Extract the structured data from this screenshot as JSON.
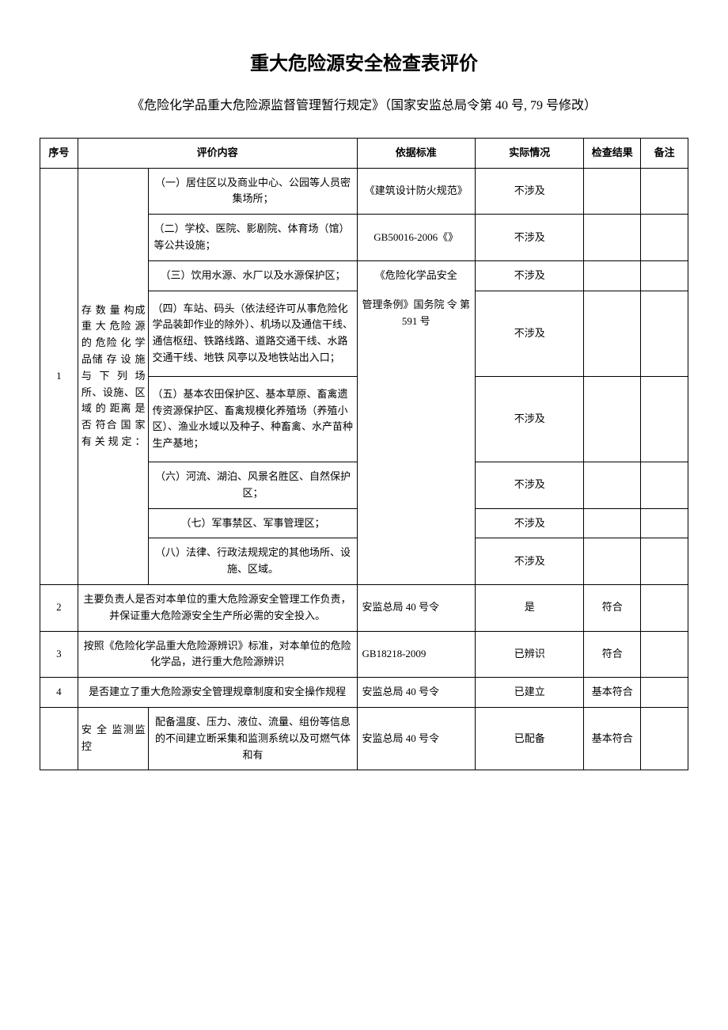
{
  "title": "重大危险源安全检查表评价",
  "subtitle": "《危险化学品重大危险源监督管理暂行规定》（国家安监总局令第 40 号, 79 号修改）",
  "headers": {
    "seq": "序号",
    "content": "评价内容",
    "standard": "依据标准",
    "actual": "实际情况",
    "result": "检查结果",
    "remark": "备注"
  },
  "row1": {
    "seq": "1",
    "category": "存 数 量 构成 重 大 危险 源 的 危险 化 学 品储 存 设 施与 下 列 场所、设施、区 域 的 距离 是 否 符合 国 家 有关规定：",
    "items": {
      "i1": "（一）居住区以及商业中心、公园等人员密集场所；",
      "i2": "（二）学校、医院、影剧院、体育场（馆）等公共设施；",
      "i3": "（三）饮用水源、水厂以及水源保护区；",
      "i4": "（四）车站、码头（依法经许可从事危险化学品装卸作业的除外）、机场以及通信干线、通信枢纽、铁路线路、道路交通干线、水路交通干线、地铁\n风亭以及地铁站出入口；",
      "i5": "（五）基本农田保护区、基本草原、畜禽遗传资源保护区、畜禽规模化养殖场（养殖小区）、渔业水域以及种子、种畜禽、水产苗种生产基地；",
      "i6": "（六）河流、湖泊、风景名胜区、自然保护区；",
      "i7": "（七）军事禁区、军事管理区；",
      "i8": "（八）法律、行政法规规定的其他场所、设施、区域。"
    },
    "standards": {
      "s1": "《建筑设计防火规范》",
      "s2": "GB50016-2006《》",
      "s3": "《危险化学品安全",
      "s4": "管理条例》国务院\n令\n第 591 号"
    },
    "actuals": {
      "a1": "不涉及",
      "a2": "不涉及",
      "a3": "不涉及",
      "a4": "不涉及",
      "a5": "不涉及",
      "a6": "不涉及",
      "a7": "不涉及",
      "a8": "不涉及"
    }
  },
  "row2": {
    "seq": "2",
    "content": "主要负责人是否对本单位的重大危险源安全管理工作负责，并保证重大危险源安全生产所必需的安全投入。",
    "standard": "安监总局 40 号令",
    "actual": "是",
    "result": "符合"
  },
  "row3": {
    "seq": "3",
    "content": "按照《危险化学品重大危险源辨识》标准，对本单位的危险化学品，进行重大危险源辨识",
    "standard": "GB18218-2009",
    "actual": "已辨识",
    "result": "符合"
  },
  "row4": {
    "seq": "4",
    "content": "是否建立了重大危险源安全管理规章制度和安全操作规程",
    "standard": "安监总局 40 号令",
    "actual": "已建立",
    "result": "基本符合"
  },
  "row5": {
    "category": "安 全 监测监控",
    "content": "配备温度、压力、液位、流量、组份等信息的不间建立断采集和监测系统以及可燃气体和有",
    "standard": "安监总局 40 号令",
    "actual": "已配备",
    "result": "基本符合"
  }
}
